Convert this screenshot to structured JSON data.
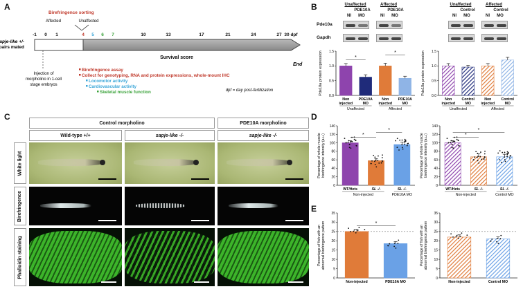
{
  "panel_letters": {
    "a": "A",
    "b": "B",
    "c": "C",
    "d": "D",
    "e": "E"
  },
  "panel_a": {
    "timepoints": [
      "-1",
      "0",
      "1",
      "4",
      "5",
      "6",
      "7",
      "10",
      "13",
      "17",
      "21",
      "24",
      "27",
      "30 dpf"
    ],
    "mated_label": "sapje-like +/- pairs mated",
    "sorting_label": "Birefringence sorting",
    "affected_label": "Affected",
    "unaffected_label": "Unaffected",
    "survival_label": "Survival score",
    "end_label": "End",
    "injection_label": "Injection of morpholino in 1-cell stage embryos",
    "assays": [
      {
        "text": "Birefringence assay",
        "color": "#c0392b"
      },
      {
        "text": "Collect for genotyping, RNA and protein expressions, whole-mount IHC",
        "color": "#c0392b"
      },
      {
        "text": "Locomotor activity",
        "color": "#3aa6d8"
      },
      {
        "text": "Cardiovascular activity",
        "color": "#3aa6d8"
      },
      {
        "text": "Skeletal muscle function",
        "color": "#3aa23a"
      }
    ],
    "dpf_note": "dpf = day post-fertilization"
  },
  "panel_b": {
    "left_groups": [
      {
        "title": "Unaffected",
        "sub": "PDE10A"
      },
      {
        "title": "Affected",
        "sub": "PDE10A"
      }
    ],
    "right_groups": [
      {
        "title": "Unaffected",
        "sub": "Control"
      },
      {
        "title": "Affected",
        "sub": "Control"
      }
    ],
    "lane_labels": [
      "NI",
      "MO"
    ],
    "blot_rows": [
      "Pde10a",
      "Gapdh"
    ],
    "ylabel": "Pde10a protein expression",
    "star": "*"
  },
  "panel_c": {
    "col_headers": [
      "Control morpholino",
      "PDE10A morpholino"
    ],
    "sub_headers": [
      "Wild-type +/+",
      "sapje-like -/-",
      "sapje-like -/-"
    ],
    "row_labels": [
      "White light",
      "Birefringence",
      "Phalloidin staining"
    ]
  },
  "panel_d": {
    "ylabel": "Percentage of whole-muscle birefringence intensity (a.u.)"
  },
  "panel_e": {
    "ylabel": "Percentage of fish with an abnormal birefringence pattern"
  },
  "chart_data": [
    {
      "id": "B-left",
      "type": "bar",
      "categories": [
        "Non injected",
        "PDE10A MO",
        "Non injected",
        "PDE10A MO"
      ],
      "group_labels": [
        "Unaffected",
        "Affected"
      ],
      "values": [
        1.0,
        0.62,
        1.0,
        0.58
      ],
      "errors": [
        0.08,
        0.08,
        0.09,
        0.07
      ],
      "colors": [
        "#8e44ad",
        "#1f2b7a",
        "#e07b39",
        "#8fb4e6"
      ],
      "hatched": false,
      "ylabel": "Pde10a protein expression",
      "ylim": [
        0,
        1.5
      ],
      "yticks": [
        "0.0",
        "0.5",
        "1.0",
        "1.5"
      ],
      "yticks_num": [
        0,
        0.5,
        1.0,
        1.5
      ],
      "significance": [
        {
          "from": 0,
          "to": 1,
          "label": "*"
        },
        {
          "from": 2,
          "to": 3,
          "label": "*"
        }
      ]
    },
    {
      "id": "B-right",
      "type": "bar",
      "categories": [
        "Non injected",
        "Control MO",
        "Non injected",
        "Control MO"
      ],
      "group_labels": [
        "Unaffected",
        "Affected"
      ],
      "values": [
        1.0,
        0.96,
        1.0,
        1.2
      ],
      "errors": [
        0.08,
        0.06,
        0.08,
        0.09
      ],
      "colors": [
        "#8e44ad",
        "#1f2b7a",
        "#e07b39",
        "#8fb4e6"
      ],
      "hatched": true,
      "ylabel": "Pde10a protein expression",
      "ylim": [
        0,
        1.5
      ],
      "yticks": [
        "0.0",
        "0.5",
        "1.0",
        "1.5"
      ],
      "yticks_num": [
        0,
        0.5,
        1.0,
        1.5
      ],
      "significance": []
    },
    {
      "id": "D-left",
      "type": "bar",
      "categories": [
        "WT/Hets",
        "SL -/-",
        "SL -/-"
      ],
      "group_labels": [
        "Non-injected",
        "PDE10A MO"
      ],
      "values": [
        100,
        58,
        96
      ],
      "errors": [
        5,
        5,
        6
      ],
      "colors": [
        "#8e44ad",
        "#e07b39",
        "#6aa1e6"
      ],
      "hatched": false,
      "ylabel": "Percentage of whole-muscle birefringence intensity (a.u.)",
      "ylim": [
        0,
        140
      ],
      "yticks": [
        "0",
        "20",
        "40",
        "60",
        "80",
        "100",
        "120",
        "140"
      ],
      "yticks_num": [
        0,
        20,
        40,
        60,
        80,
        100,
        120,
        140
      ],
      "significance": [
        {
          "from": 0,
          "to": 1,
          "label": "*"
        },
        {
          "from": 1,
          "to": 2,
          "label": "*"
        }
      ]
    },
    {
      "id": "D-right",
      "type": "bar",
      "categories": [
        "WT/Hets",
        "SL -/-",
        "SL -/-"
      ],
      "group_labels": [
        "Non-injected",
        "Control MO"
      ],
      "values": [
        100,
        67,
        67
      ],
      "errors": [
        5,
        7,
        6
      ],
      "colors": [
        "#8e44ad",
        "#e07b39",
        "#6aa1e6"
      ],
      "hatched": true,
      "ylabel": "Percentage of whole-muscle birefringence intensity (a.u.)",
      "ylim": [
        0,
        140
      ],
      "yticks": [
        "0",
        "20",
        "40",
        "60",
        "80",
        "100",
        "120",
        "140"
      ],
      "yticks_num": [
        0,
        20,
        40,
        60,
        80,
        100,
        120,
        140
      ],
      "significance": [
        {
          "from": 0,
          "to": 1,
          "label": "*"
        },
        {
          "from": 0,
          "to": 2,
          "label": "*"
        }
      ]
    },
    {
      "id": "E-left",
      "type": "bar",
      "categories": [
        "Non-injected",
        "PDE10A MO"
      ],
      "values": [
        25,
        18.5
      ],
      "errors": [
        1.2,
        1.1
      ],
      "colors": [
        "#e07b39",
        "#6aa1e6"
      ],
      "hatched": false,
      "ylabel": "Percentage of fish with an abnormal birefringence pattern",
      "ylim": [
        0,
        35
      ],
      "yticks": [
        "0",
        "5",
        "10",
        "15",
        "20",
        "25",
        "30",
        "35"
      ],
      "yticks_num": [
        0,
        5,
        10,
        15,
        20,
        25,
        30,
        35
      ],
      "reference_line": 25,
      "significance": [
        {
          "from": 0,
          "to": 1,
          "label": "*"
        }
      ]
    },
    {
      "id": "E-right",
      "type": "bar",
      "categories": [
        "Non-injected",
        "Control MO"
      ],
      "values": [
        22,
        21
      ],
      "errors": [
        1.2,
        1.1
      ],
      "colors": [
        "#e07b39",
        "#6aa1e6"
      ],
      "hatched": true,
      "ylabel": "Percentage of fish with an abnormal birefringence pattern",
      "ylim": [
        0,
        35
      ],
      "yticks": [
        "0",
        "5",
        "10",
        "15",
        "20",
        "25",
        "30",
        "35"
      ],
      "yticks_num": [
        0,
        5,
        10,
        15,
        20,
        25,
        30,
        35
      ],
      "reference_line": 25,
      "significance": []
    }
  ]
}
